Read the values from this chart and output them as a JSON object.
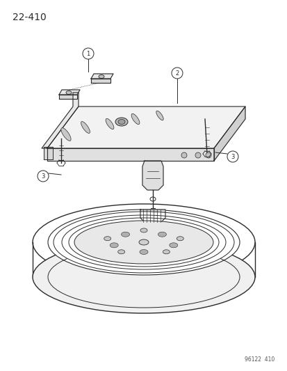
{
  "title": "22-410",
  "footnote": "96122  410",
  "bg_color": "#ffffff",
  "line_color": "#2a2a2a",
  "title_fontsize": 10,
  "footnote_fontsize": 5.5,
  "fig_width": 4.14,
  "fig_height": 5.33,
  "dpi": 100
}
